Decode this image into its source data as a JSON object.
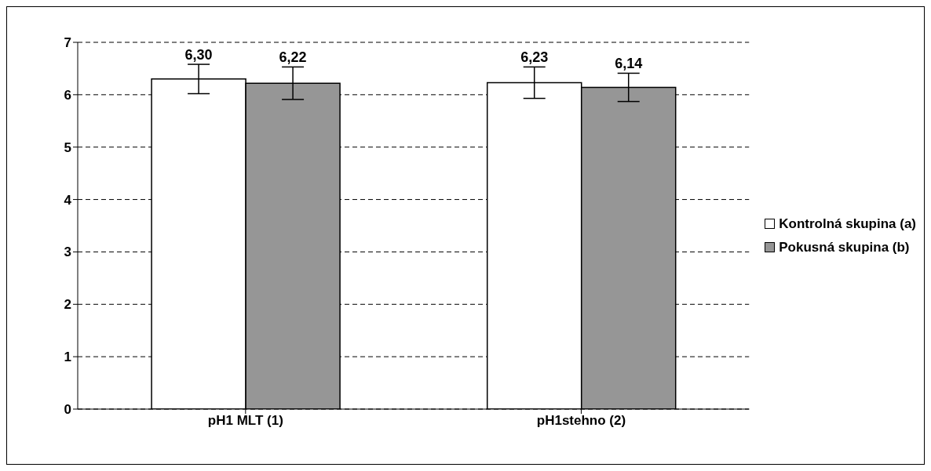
{
  "chart_data": {
    "type": "bar",
    "categories": [
      "pH1 MLT (1)",
      "pH1stehno (2)"
    ],
    "series": [
      {
        "name": "Kontrolná skupina (a)",
        "color": "#ffffff",
        "values": [
          6.3,
          6.23
        ],
        "errors": [
          0.28,
          0.3
        ],
        "value_labels": [
          "6,30",
          "6,23"
        ]
      },
      {
        "name": "Pokusná skupina (b)",
        "color": "#969696",
        "values": [
          6.22,
          6.14
        ],
        "errors": [
          0.31,
          0.27
        ],
        "value_labels": [
          "6,22",
          "6,14"
        ]
      }
    ],
    "ylim": [
      0,
      7
    ],
    "yticks": [
      0,
      1,
      2,
      3,
      4,
      5,
      6,
      7
    ],
    "grid": "y",
    "line_style": "dashed",
    "legend": "right"
  }
}
